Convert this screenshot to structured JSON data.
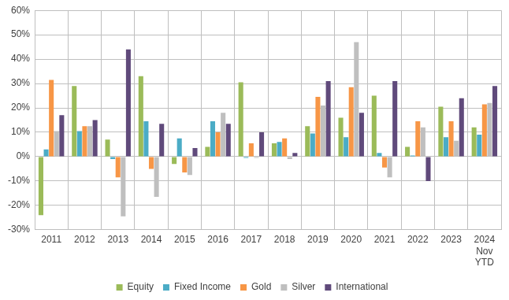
{
  "chart_data": {
    "type": "bar",
    "categories": [
      "2011",
      "2012",
      "2013",
      "2014",
      "2015",
      "2016",
      "2017",
      "2018",
      "2019",
      "2020",
      "2021",
      "2022",
      "2023",
      "2024\nNov\nYTD"
    ],
    "series": [
      {
        "name": "Equity",
        "color": "#9bbb59",
        "values": [
          -24,
          29,
          7,
          33,
          -3,
          4,
          30.5,
          5.5,
          12.5,
          16,
          25,
          4,
          20.5,
          12
        ]
      },
      {
        "name": "Fixed Income",
        "color": "#4bacc6",
        "values": [
          3,
          10.5,
          -1,
          14.5,
          7.5,
          14.5,
          -0.5,
          6,
          9.5,
          8,
          1.5,
          0.5,
          8,
          9
        ]
      },
      {
        "name": "Gold",
        "color": "#f79646",
        "values": [
          31.5,
          12.5,
          -8.5,
          -5,
          -6.5,
          10,
          5.5,
          7.5,
          24.5,
          28.5,
          -4.5,
          14.5,
          14.5,
          21.5
        ]
      },
      {
        "name": "Silver",
        "color": "#bfbfbf",
        "values": [
          10.5,
          12.5,
          -24.5,
          -16.5,
          -7.5,
          18,
          -0.5,
          -1,
          21,
          47,
          -8.5,
          12,
          6.5,
          22
        ]
      },
      {
        "name": "International",
        "color": "#604a7b",
        "values": [
          17,
          15,
          44,
          13.5,
          3.5,
          13.5,
          10,
          1.5,
          31,
          18,
          31,
          -10,
          24,
          29
        ]
      }
    ],
    "ylim": [
      -30,
      60
    ],
    "yticks": [
      {
        "value": -30,
        "label": "-30%"
      },
      {
        "value": -20,
        "label": "-20%"
      },
      {
        "value": -10,
        "label": "-10%"
      },
      {
        "value": 0,
        "label": "0%"
      },
      {
        "value": 10,
        "label": "10%"
      },
      {
        "value": 20,
        "label": "20%"
      },
      {
        "value": 30,
        "label": "30%"
      },
      {
        "value": 40,
        "label": "40%"
      },
      {
        "value": 50,
        "label": "50%"
      },
      {
        "value": 60,
        "label": "60%"
      }
    ],
    "grid": true,
    "legend": "bottom"
  }
}
